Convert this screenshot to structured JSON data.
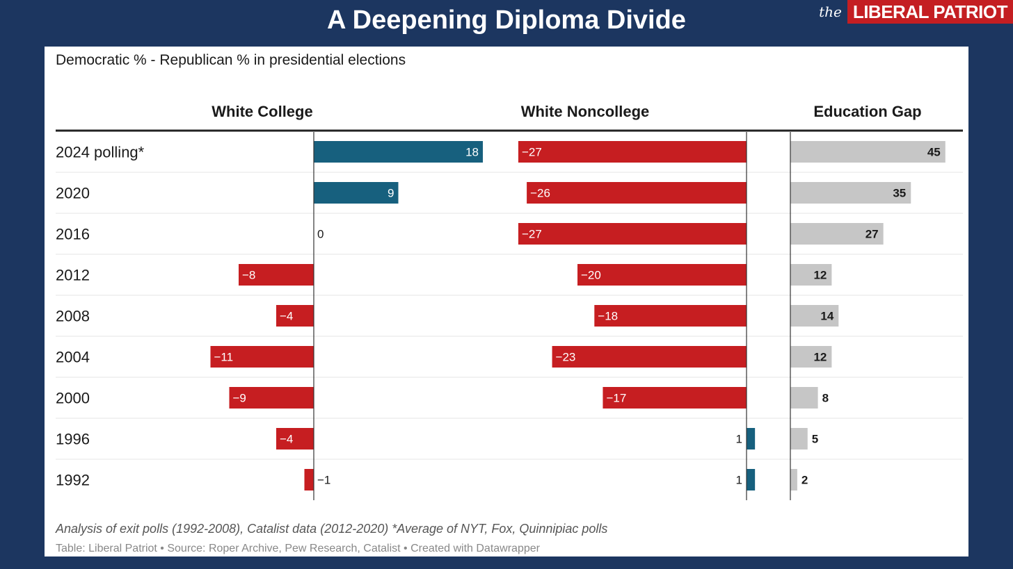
{
  "header": {
    "title": "A Deepening Diploma Divide",
    "logo_prefix": "the",
    "logo_name": "LIBERAL PATRIOT"
  },
  "chart_data": {
    "type": "bar",
    "subtitle": "Democratic % - Republican % in presidential elections",
    "categories": [
      "2024 polling*",
      "2020",
      "2016",
      "2012",
      "2008",
      "2004",
      "2000",
      "1996",
      "1992"
    ],
    "series": [
      {
        "name": "White College",
        "values": [
          18,
          9,
          0,
          -8,
          -4,
          -11,
          -9,
          -4,
          -1
        ]
      },
      {
        "name": "White Noncollege",
        "values": [
          -27,
          -26,
          -27,
          -20,
          -18,
          -23,
          -17,
          1,
          1
        ]
      },
      {
        "name": "Education Gap",
        "values": [
          45,
          35,
          27,
          12,
          14,
          12,
          8,
          5,
          2
        ]
      }
    ],
    "value_labels": {
      "White College": [
        "18",
        "9",
        "0",
        "−8",
        "−4",
        "−11",
        "−9",
        "−4",
        "−1"
      ],
      "White Noncollege": [
        "−27",
        "−26",
        "−27",
        "−20",
        "−18",
        "−23",
        "−17",
        "1",
        "1"
      ],
      "Education Gap": [
        "45",
        "35",
        "27",
        "12",
        "14",
        "12",
        "8",
        "5",
        "2"
      ]
    },
    "colors": {
      "positive": "#17607e",
      "negative": "#c61e21",
      "gap": "#c6c6c6"
    },
    "note": "Analysis of exit polls (1992-2008), Catalist data (2012-2020) *Average of NYT, Fox, Quinnipiac polls",
    "source": "Table: Liberal Patriot • Source: Roper Archive, Pew Research, Catalist • Created with Datawrapper"
  }
}
